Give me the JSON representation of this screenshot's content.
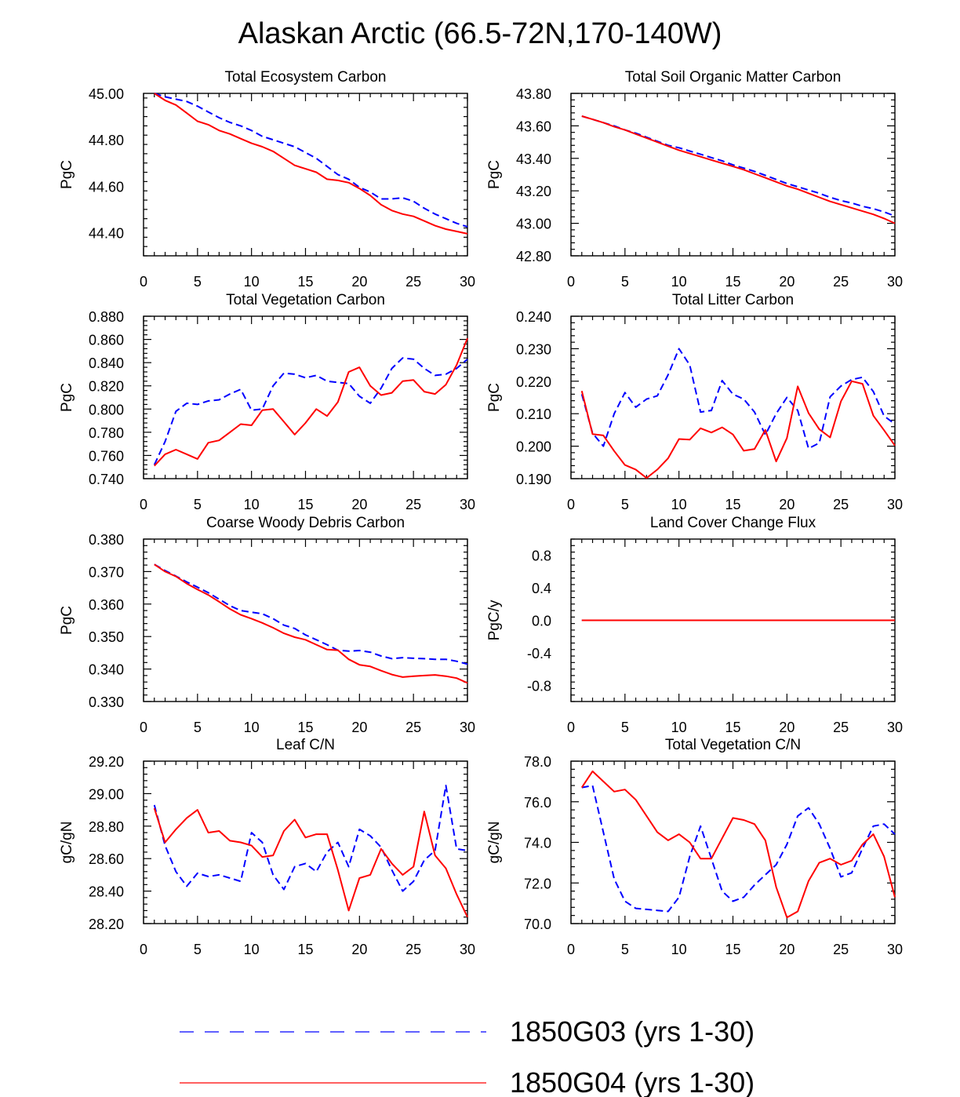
{
  "figure_title": "Alaskan Arctic (66.5-72N,170-140W)",
  "legend": {
    "items": [
      {
        "label": "1850G03 (yrs 1-30)",
        "color": "#0000ff",
        "dash": true
      },
      {
        "label": "1850G04 (yrs 1-30)",
        "color": "#ff0000",
        "dash": false
      }
    ]
  },
  "chart_data": [
    {
      "type": "line",
      "title": "Total Ecosystem Carbon",
      "ylabel": "PgC",
      "xlim": [
        0,
        30
      ],
      "ylim": [
        44.3,
        45.0
      ],
      "xticks": [
        0,
        5,
        10,
        15,
        20,
        25,
        30
      ],
      "yticks": [
        44.4,
        44.6,
        44.8,
        45.0
      ],
      "ytick_labels": [
        "44.40",
        "44.60",
        "44.80",
        "45.00"
      ],
      "ytick_decimals": 2,
      "x": [
        1,
        2,
        3,
        4,
        5,
        6,
        7,
        8,
        9,
        10,
        11,
        12,
        13,
        14,
        15,
        16,
        17,
        18,
        19,
        20,
        21,
        22,
        23,
        24,
        25,
        26,
        27,
        28,
        29,
        30
      ],
      "series": [
        {
          "name": "1850G03 (yrs 1-30)",
          "color": "#0000ff",
          "dash": true,
          "values": [
            45.0,
            44.985,
            44.975,
            44.965,
            44.945,
            44.92,
            44.895,
            44.875,
            44.86,
            44.84,
            44.815,
            44.8,
            44.785,
            44.77,
            44.745,
            44.72,
            44.685,
            44.65,
            44.63,
            44.595,
            44.575,
            44.545,
            44.545,
            44.55,
            44.535,
            44.505,
            44.48,
            44.46,
            44.44,
            44.425
          ]
        },
        {
          "name": "1850G04 (yrs 1-30)",
          "color": "#ff0000",
          "dash": false,
          "values": [
            45.0,
            44.97,
            44.95,
            44.915,
            44.88,
            44.865,
            44.84,
            44.825,
            44.805,
            44.785,
            44.77,
            44.75,
            44.72,
            44.69,
            44.675,
            44.66,
            44.63,
            44.625,
            44.615,
            44.59,
            44.56,
            44.52,
            44.495,
            44.48,
            44.47,
            44.45,
            44.43,
            44.415,
            44.405,
            44.395
          ]
        }
      ]
    },
    {
      "type": "line",
      "title": "Total Soil Organic Matter Carbon",
      "ylabel": "PgC",
      "xlim": [
        0,
        30
      ],
      "ylim": [
        42.8,
        43.8
      ],
      "xticks": [
        0,
        5,
        10,
        15,
        20,
        25,
        30
      ],
      "yticks": [
        42.8,
        43.0,
        43.2,
        43.4,
        43.6,
        43.8
      ],
      "ytick_labels": [
        "42.80",
        "43.00",
        "43.20",
        "43.40",
        "43.60",
        "43.80"
      ],
      "ytick_decimals": 2,
      "x": [
        1,
        2,
        3,
        4,
        5,
        6,
        7,
        8,
        9,
        10,
        11,
        12,
        13,
        14,
        15,
        16,
        17,
        18,
        19,
        20,
        21,
        22,
        23,
        24,
        25,
        26,
        27,
        28,
        29,
        30
      ],
      "series": [
        {
          "name": "1850G03 (yrs 1-30)",
          "color": "#0000ff",
          "dash": true,
          "values": [
            43.66,
            43.64,
            43.62,
            43.6,
            43.575,
            43.555,
            43.53,
            43.505,
            43.48,
            43.465,
            43.445,
            43.425,
            43.405,
            43.385,
            43.36,
            43.34,
            43.32,
            43.295,
            43.27,
            43.245,
            43.225,
            43.205,
            43.185,
            43.16,
            43.14,
            43.125,
            43.105,
            43.09,
            43.07,
            43.045
          ]
        },
        {
          "name": "1850G04 (yrs 1-30)",
          "color": "#ff0000",
          "dash": false,
          "values": [
            43.66,
            43.64,
            43.62,
            43.595,
            43.575,
            43.55,
            43.525,
            43.5,
            43.475,
            43.45,
            43.43,
            43.41,
            43.39,
            43.37,
            43.35,
            43.33,
            43.305,
            43.28,
            43.255,
            43.23,
            43.21,
            43.185,
            43.16,
            43.135,
            43.115,
            43.095,
            43.075,
            43.055,
            43.03,
            43.0
          ]
        }
      ]
    },
    {
      "type": "line",
      "title": "Total Vegetation Carbon",
      "ylabel": "PgC",
      "xlim": [
        0,
        30
      ],
      "ylim": [
        0.74,
        0.88
      ],
      "xticks": [
        0,
        5,
        10,
        15,
        20,
        25,
        30
      ],
      "yticks": [
        0.74,
        0.76,
        0.78,
        0.8,
        0.82,
        0.84,
        0.86,
        0.88
      ],
      "ytick_labels": [
        "0.740",
        "0.760",
        "0.780",
        "0.800",
        "0.820",
        "0.840",
        "0.860",
        "0.880"
      ],
      "ytick_decimals": 3,
      "x": [
        1,
        2,
        3,
        4,
        5,
        6,
        7,
        8,
        9,
        10,
        11,
        12,
        13,
        14,
        15,
        16,
        17,
        18,
        19,
        20,
        21,
        22,
        23,
        24,
        25,
        26,
        27,
        28,
        29,
        30
      ],
      "series": [
        {
          "name": "1850G03 (yrs 1-30)",
          "color": "#0000ff",
          "dash": true,
          "values": [
            0.752,
            0.772,
            0.798,
            0.805,
            0.804,
            0.807,
            0.808,
            0.813,
            0.817,
            0.799,
            0.8,
            0.82,
            0.831,
            0.83,
            0.827,
            0.829,
            0.824,
            0.823,
            0.822,
            0.811,
            0.805,
            0.818,
            0.835,
            0.844,
            0.843,
            0.835,
            0.829,
            0.83,
            0.835,
            0.843
          ]
        },
        {
          "name": "1850G04 (yrs 1-30)",
          "color": "#ff0000",
          "dash": false,
          "values": [
            0.751,
            0.761,
            0.765,
            0.761,
            0.757,
            0.771,
            0.773,
            0.78,
            0.787,
            0.786,
            0.799,
            0.8,
            0.789,
            0.778,
            0.788,
            0.8,
            0.794,
            0.806,
            0.832,
            0.836,
            0.82,
            0.812,
            0.814,
            0.824,
            0.825,
            0.815,
            0.813,
            0.821,
            0.838,
            0.861
          ]
        }
      ]
    },
    {
      "type": "line",
      "title": "Total Litter Carbon",
      "ylabel": "PgC",
      "xlim": [
        0,
        30
      ],
      "ylim": [
        0.19,
        0.24
      ],
      "xticks": [
        0,
        5,
        10,
        15,
        20,
        25,
        30
      ],
      "yticks": [
        0.19,
        0.2,
        0.21,
        0.22,
        0.23,
        0.24
      ],
      "ytick_labels": [
        "0.190",
        "0.200",
        "0.210",
        "0.220",
        "0.230",
        "0.240"
      ],
      "ytick_decimals": 3,
      "x": [
        1,
        2,
        3,
        4,
        5,
        6,
        7,
        8,
        9,
        10,
        11,
        12,
        13,
        14,
        15,
        16,
        17,
        18,
        19,
        20,
        21,
        22,
        23,
        24,
        25,
        26,
        27,
        28,
        29,
        30
      ],
      "series": [
        {
          "name": "1850G03 (yrs 1-30)",
          "color": "#0000ff",
          "dash": true,
          "values": [
            0.216,
            0.204,
            0.2,
            0.21,
            0.2165,
            0.212,
            0.2145,
            0.2155,
            0.222,
            0.23,
            0.225,
            0.2105,
            0.211,
            0.2202,
            0.216,
            0.2145,
            0.2105,
            0.2035,
            0.21,
            0.215,
            0.211,
            0.1993,
            0.201,
            0.2152,
            0.2185,
            0.2205,
            0.2212,
            0.2168,
            0.2093,
            0.2068
          ]
        },
        {
          "name": "1850G04 (yrs 1-30)",
          "color": "#ff0000",
          "dash": false,
          "values": [
            0.217,
            0.2037,
            0.2033,
            0.1985,
            0.1942,
            0.1928,
            0.1902,
            0.1928,
            0.1963,
            0.2022,
            0.202,
            0.2055,
            0.2042,
            0.2058,
            0.2036,
            0.1986,
            0.1991,
            0.205,
            0.1953,
            0.2025,
            0.2184,
            0.2102,
            0.2052,
            0.2027,
            0.2138,
            0.22,
            0.2192,
            0.2094,
            0.2049,
            0.2002
          ]
        }
      ]
    },
    {
      "type": "line",
      "title": "Coarse Woody Debris Carbon",
      "ylabel": "PgC",
      "xlim": [
        0,
        30
      ],
      "ylim": [
        0.33,
        0.38
      ],
      "xticks": [
        0,
        5,
        10,
        15,
        20,
        25,
        30
      ],
      "yticks": [
        0.33,
        0.34,
        0.35,
        0.36,
        0.37,
        0.38
      ],
      "ytick_labels": [
        "0.330",
        "0.340",
        "0.350",
        "0.360",
        "0.370",
        "0.380"
      ],
      "ytick_decimals": 3,
      "x": [
        1,
        2,
        3,
        4,
        5,
        6,
        7,
        8,
        9,
        10,
        11,
        12,
        13,
        14,
        15,
        16,
        17,
        18,
        19,
        20,
        21,
        22,
        23,
        24,
        25,
        26,
        27,
        28,
        29,
        30
      ],
      "series": [
        {
          "name": "1850G03 (yrs 1-30)",
          "color": "#0000ff",
          "dash": true,
          "values": [
            0.3722,
            0.3703,
            0.3686,
            0.3668,
            0.3652,
            0.3635,
            0.3615,
            0.3595,
            0.358,
            0.3575,
            0.357,
            0.3555,
            0.3535,
            0.3525,
            0.3505,
            0.349,
            0.3475,
            0.3458,
            0.3455,
            0.3457,
            0.3452,
            0.344,
            0.3432,
            0.3435,
            0.3433,
            0.3432,
            0.343,
            0.343,
            0.3424,
            0.3415
          ]
        },
        {
          "name": "1850G04 (yrs 1-30)",
          "color": "#ff0000",
          "dash": false,
          "values": [
            0.3722,
            0.37,
            0.3685,
            0.3663,
            0.3645,
            0.3628,
            0.3607,
            0.3585,
            0.3567,
            0.3555,
            0.3542,
            0.3527,
            0.351,
            0.3498,
            0.349,
            0.3475,
            0.346,
            0.3458,
            0.343,
            0.3413,
            0.3408,
            0.3395,
            0.3383,
            0.3375,
            0.3378,
            0.338,
            0.3382,
            0.3378,
            0.3372,
            0.3357
          ]
        }
      ]
    },
    {
      "type": "line",
      "title": "Land Cover Change Flux",
      "ylabel": "PgC/y",
      "xlim": [
        0,
        30
      ],
      "ylim": [
        -1.0,
        1.0
      ],
      "xticks": [
        0,
        5,
        10,
        15,
        20,
        25,
        30
      ],
      "yticks": [
        -0.8,
        -0.4,
        0.0,
        0.4,
        0.8
      ],
      "ytick_labels": [
        "-0.8",
        "-0.4",
        "0.0",
        "0.4",
        "0.8"
      ],
      "ytick_decimals": 1,
      "x": [
        1,
        30
      ],
      "series": [
        {
          "name": "1850G03 (yrs 1-30)",
          "color": "#0000ff",
          "dash": true,
          "values": [
            0.0,
            0.0
          ]
        },
        {
          "name": "1850G04 (yrs 1-30)",
          "color": "#ff0000",
          "dash": false,
          "values": [
            0.0,
            0.0
          ]
        }
      ]
    },
    {
      "type": "line",
      "title": "Leaf C/N",
      "ylabel": "gC/gN",
      "xlim": [
        0,
        30
      ],
      "ylim": [
        28.2,
        29.2
      ],
      "xticks": [
        0,
        5,
        10,
        15,
        20,
        25,
        30
      ],
      "yticks": [
        28.2,
        28.4,
        28.6,
        28.8,
        29.0,
        29.2
      ],
      "ytick_labels": [
        "28.20",
        "28.40",
        "28.60",
        "28.80",
        "29.00",
        "29.20"
      ],
      "ytick_decimals": 2,
      "x": [
        1,
        2,
        3,
        4,
        5,
        6,
        7,
        8,
        9,
        10,
        11,
        12,
        13,
        14,
        15,
        16,
        17,
        18,
        19,
        20,
        21,
        22,
        23,
        24,
        25,
        26,
        27,
        28,
        29,
        30
      ],
      "series": [
        {
          "name": "1850G03 (yrs 1-30)",
          "color": "#0000ff",
          "dash": true,
          "values": [
            28.93,
            28.68,
            28.52,
            28.43,
            28.51,
            28.49,
            28.5,
            28.48,
            28.46,
            28.76,
            28.7,
            28.5,
            28.41,
            28.55,
            28.57,
            28.52,
            28.64,
            28.7,
            28.55,
            28.78,
            28.74,
            28.67,
            28.53,
            28.4,
            28.46,
            28.59,
            28.65,
            29.05,
            28.66,
            28.65
          ]
        },
        {
          "name": "1850G04 (yrs 1-30)",
          "color": "#ff0000",
          "dash": false,
          "values": [
            28.91,
            28.7,
            28.78,
            28.85,
            28.9,
            28.76,
            28.77,
            28.71,
            28.7,
            28.68,
            28.61,
            28.62,
            28.77,
            28.84,
            28.73,
            28.75,
            28.75,
            28.53,
            28.28,
            28.48,
            28.5,
            28.66,
            28.57,
            28.5,
            28.55,
            28.89,
            28.62,
            28.54,
            28.38,
            28.24
          ]
        }
      ]
    },
    {
      "type": "line",
      "title": "Total Vegetation C/N",
      "ylabel": "gC/gN",
      "xlim": [
        0,
        30
      ],
      "ylim": [
        70.0,
        78.0
      ],
      "xticks": [
        0,
        5,
        10,
        15,
        20,
        25,
        30
      ],
      "yticks": [
        70.0,
        72.0,
        74.0,
        76.0,
        78.0
      ],
      "ytick_labels": [
        "70.0",
        "72.0",
        "74.0",
        "76.0",
        "78.0"
      ],
      "ytick_decimals": 1,
      "x": [
        1,
        2,
        3,
        4,
        5,
        6,
        7,
        8,
        9,
        10,
        11,
        12,
        13,
        14,
        15,
        16,
        17,
        18,
        19,
        20,
        21,
        22,
        23,
        24,
        25,
        26,
        27,
        28,
        29,
        30
      ],
      "series": [
        {
          "name": "1850G03 (yrs 1-30)",
          "color": "#0000ff",
          "dash": true,
          "values": [
            76.7,
            76.8,
            74.5,
            72.2,
            71.1,
            70.75,
            70.7,
            70.65,
            70.6,
            71.3,
            73.3,
            74.8,
            73.2,
            71.6,
            71.1,
            71.3,
            71.9,
            72.4,
            72.9,
            73.9,
            75.3,
            75.7,
            74.9,
            73.7,
            72.3,
            72.5,
            73.7,
            74.8,
            74.9,
            74.4
          ]
        },
        {
          "name": "1850G04 (yrs 1-30)",
          "color": "#ff0000",
          "dash": false,
          "values": [
            76.7,
            77.5,
            77.0,
            76.5,
            76.6,
            76.1,
            75.3,
            74.5,
            74.1,
            74.4,
            74.0,
            73.2,
            73.2,
            74.2,
            75.2,
            75.1,
            74.9,
            74.1,
            71.8,
            70.3,
            70.6,
            72.1,
            73.0,
            73.2,
            72.9,
            73.1,
            73.9,
            74.4,
            73.3,
            71.3
          ]
        }
      ]
    }
  ]
}
